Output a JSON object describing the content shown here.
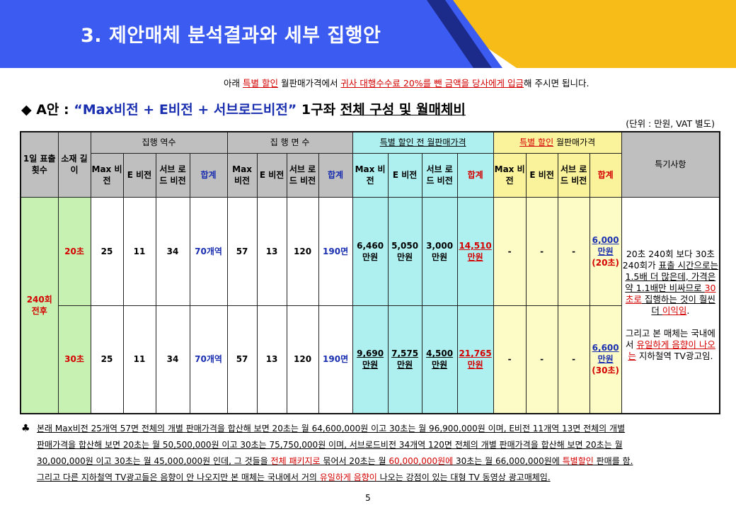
{
  "header": {
    "title": "3. 제안매체 분석결과와 세부 집행안"
  },
  "notice": {
    "p1": "아래 ",
    "p2": "특별 할인",
    "p3": " 월판매가격에서 ",
    "p4": "귀사 대행수수료 20%를 뺀 금액을 당사에게 입금",
    "p5": "해 주시면 됩니다."
  },
  "section": {
    "bullet": "◆ A안 : ",
    "plan": "“Max비전 + E비전 + 서브로드비전”",
    "count": " 1구좌 ",
    "desc": "전체 구성 및 월매체비"
  },
  "unit_note": "(단위 : 만원, VAT 별도)",
  "table": {
    "h_daily": "1일 표출 횟수",
    "h_length": "소재 길이",
    "h_stations": "집행 역수",
    "h_faces": "집 행 면 수",
    "h_before": "특별 할인 전 월판매가격",
    "h_special_a": "특별 할인",
    "h_special_b": " 월판매가격",
    "h_remarks": "특기사항",
    "sub_max": "Max 비전",
    "sub_e": "E 비전",
    "sub_sub": "서브 로드 비전",
    "sub_total": "합계",
    "daily_value": "240회 전후",
    "row20": {
      "length": "20초",
      "st_max": "25",
      "st_e": "11",
      "st_sub": "34",
      "st_total": "70개역",
      "f_max": "57",
      "f_e": "13",
      "f_sub": "120",
      "f_total": "190면",
      "p_max": "6,460 만원",
      "p_e": "5,050 만원",
      "p_sub": "3,000 만원",
      "p_total": "14,510 만원",
      "s_max": "-",
      "s_e": "-",
      "s_sub": "-",
      "s_total_a": "6,000 만원",
      "s_total_b": "(20초)"
    },
    "row30": {
      "length": "30초",
      "st_max": "25",
      "st_e": "11",
      "st_sub": "34",
      "st_total": "70개역",
      "f_max": "57",
      "f_e": "13",
      "f_sub": "120",
      "f_total": "190면",
      "p_max": "9,690 만원",
      "p_e": "7,575 만원",
      "p_sub": "4,500 만원",
      "p_total": "21,765 만원",
      "s_max": "-",
      "s_e": "-",
      "s_sub": "-",
      "s_total_a": "6,600 만원",
      "s_total_b": "(30초)"
    },
    "remarks": {
      "r1": "20초 240회 보다 30초 240회가 ",
      "r2": "표출 시간으로는 1.5배 더 많은데, 가격은 약 1.1배만 비싸므로 ",
      "r3": "30초로",
      "r4": " 집행하는 것이 훨씬 더 ",
      "r5": "이익임",
      "r6": ".",
      "r7": "그리고 본 매체는 국내에서 ",
      "r8": "유일하게 음향이 나오는",
      "r9": " 지하철역 TV광고임."
    }
  },
  "footer": {
    "club": "♣",
    "line1": "본래 Max비전 25개역 57면 전체의 개별 판매가격을 합산해 보면 20초는 월 64,600,000원 이고 30초는 월 96,900,000원 이며, E비전 11개역 13면 전체의 개별",
    "line2": "판매가격을 합산해 보면 20초는 월 50,500,000원 이고 30초는 75,750,000원 이며, 서브로드비전 34개역 120면 전체의 개별 판매가격을 합산해 보면 20초는 월",
    "line3a": "30,000,000원 이고 30초는 월 45,000,000원 인데, 그 것들을 ",
    "line3b": "전체 패키지로",
    "line3c": " 묶어서 20초는 월 ",
    "line3d": "60,000,000원에",
    "line3e": " 30초는 월 66,000,000원에 ",
    "line3f": "특별할인",
    "line3g": " 판매를 함.",
    "line4a": "그리고 다른 지하철역 TV광고들은 음향이 안 나오지만 본 매체는 국내에서 거의 ",
    "line4b": "유일하게 음향이",
    "line4c": " 나오는 강점이 있는 대형 TV 동영상 광고매체임."
  },
  "page_number": "5"
}
